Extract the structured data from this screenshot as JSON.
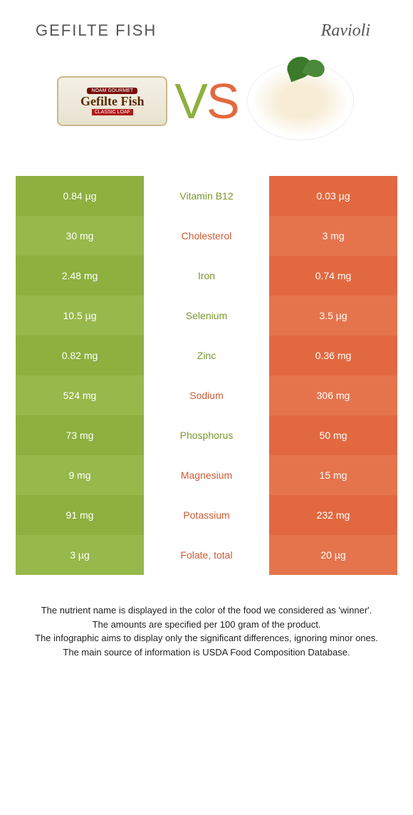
{
  "header": {
    "left_title": "GEFILTE FISH",
    "right_title": "Ravioli"
  },
  "vs": {
    "v": "V",
    "s": "S"
  },
  "colors": {
    "green_base": "#8db03e",
    "green_alt": "#97b84a",
    "orange_base": "#e2693f",
    "orange_alt": "#e5744d",
    "label_green": "#7a9a2e",
    "label_orange": "#d05a33"
  },
  "rows": [
    {
      "left": "0.84 µg",
      "label": "Vitamin B12",
      "right": "0.03 µg",
      "winner": "left"
    },
    {
      "left": "30 mg",
      "label": "Cholesterol",
      "right": "3 mg",
      "winner": "right"
    },
    {
      "left": "2.48 mg",
      "label": "Iron",
      "right": "0.74 mg",
      "winner": "left"
    },
    {
      "left": "10.5 µg",
      "label": "Selenium",
      "right": "3.5 µg",
      "winner": "left"
    },
    {
      "left": "0.82 mg",
      "label": "Zinc",
      "right": "0.36 mg",
      "winner": "left"
    },
    {
      "left": "524 mg",
      "label": "Sodium",
      "right": "306 mg",
      "winner": "right"
    },
    {
      "left": "73 mg",
      "label": "Phosphorus",
      "right": "50 mg",
      "winner": "left"
    },
    {
      "left": "9 mg",
      "label": "Magnesium",
      "right": "15 mg",
      "winner": "right"
    },
    {
      "left": "91 mg",
      "label": "Potassium",
      "right": "232 mg",
      "winner": "right"
    },
    {
      "left": "3 µg",
      "label": "Folate, total",
      "right": "20 µg",
      "winner": "right"
    }
  ],
  "footer": {
    "line1": "The nutrient name is displayed in the color of the food we considered as 'winner'.",
    "line2": "The amounts are specified per 100 gram of the product.",
    "line3": "The infographic aims to display only the significant differences, ignoring minor ones.",
    "line4": "The main source of information is USDA Food Composition Database."
  }
}
